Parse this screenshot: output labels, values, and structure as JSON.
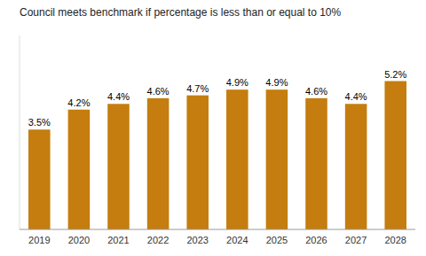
{
  "chart_data": {
    "type": "bar",
    "title": "Council meets benchmark if percentage is less than or equal to 10%",
    "categories": [
      "2019",
      "2020",
      "2021",
      "2022",
      "2023",
      "2024",
      "2025",
      "2026",
      "2027",
      "2028"
    ],
    "values": [
      3.5,
      4.2,
      4.4,
      4.6,
      4.7,
      4.9,
      4.9,
      4.6,
      4.4,
      5.2
    ],
    "value_labels": [
      "3.5%",
      "4.2%",
      "4.4%",
      "4.6%",
      "4.7%",
      "4.9%",
      "4.9%",
      "4.6%",
      "4.4%",
      "5.2%"
    ],
    "data_labels": true,
    "color": "#C47D0E",
    "ylim": [
      0,
      6.8
    ],
    "tick_labels": "x",
    "grid": false
  }
}
